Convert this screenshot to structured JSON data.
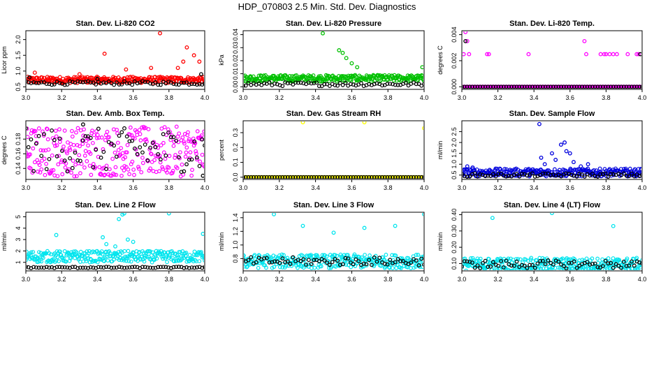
{
  "page_title": "HDP_070803  2.5 Min. Std. Dev. Diagnostics",
  "colors": {
    "black": "#000000"
  },
  "chart_data": [
    {
      "type": "scatter",
      "title": "Stan. Dev. Li-820 CO2",
      "ylabel": "Licor ppm",
      "color": "#ff0000",
      "xlim": [
        3.0,
        4.0
      ],
      "ylim": [
        0.42,
        2.28
      ],
      "xticks": [
        "3.0",
        "3.2",
        "3.4",
        "3.6",
        "3.8",
        "4.0"
      ],
      "xtick_values": [
        3.0,
        3.2,
        3.4,
        3.6,
        3.8,
        4.0
      ],
      "yticks": [
        "0.5",
        "1.0",
        "1.5",
        "2.0"
      ],
      "ytick_values": [
        0.5,
        1.0,
        1.5,
        2.0
      ],
      "series": [
        {
          "name": "colored",
          "base": 0.72,
          "spread": 0.1,
          "x": [
            3.05,
            3.3,
            3.44,
            3.56,
            3.7,
            3.75,
            3.85,
            3.88,
            3.9,
            3.94,
            3.97
          ],
          "y": [
            0.95,
            0.9,
            1.55,
            1.05,
            1.1,
            2.2,
            1.1,
            1.3,
            1.75,
            1.5,
            1.3
          ]
        },
        {
          "name": "black",
          "base": 0.62,
          "spread": 0.06,
          "x": [
            3.02,
            3.4,
            3.98,
            4.0
          ],
          "y": [
            0.8,
            0.75,
            0.9,
            0.6
          ]
        }
      ]
    },
    {
      "type": "scatter",
      "title": "Stan. Dev. Li-820 Pressure",
      "ylabel": "kPa",
      "color": "#00c000",
      "xlim": [
        3.0,
        4.0
      ],
      "ylim": [
        -0.002,
        0.043
      ],
      "xticks": [
        "3.0",
        "3.2",
        "3.4",
        "3.6",
        "3.8",
        "4.0"
      ],
      "xtick_values": [
        3.0,
        3.2,
        3.4,
        3.6,
        3.8,
        4.0
      ],
      "yticks": [
        "0.00",
        "0.01",
        "0.02",
        "0.03",
        "0.04"
      ],
      "ytick_values": [
        0.0,
        0.01,
        0.02,
        0.03,
        0.04
      ],
      "series": [
        {
          "name": "colored",
          "base": 0.0065,
          "spread": 0.0025,
          "x": [
            3.44,
            3.53,
            3.55,
            3.57,
            3.6,
            3.63,
            3.99
          ],
          "y": [
            0.041,
            0.028,
            0.026,
            0.022,
            0.018,
            0.015,
            0.015
          ]
        },
        {
          "name": "black",
          "base": 0.002,
          "spread": 0.0015,
          "x": [],
          "y": []
        }
      ]
    },
    {
      "type": "scatter",
      "title": "Stan. Dev. Li-820 Temp.",
      "ylabel": "degrees C",
      "color": "#ff00ff",
      "xlim": [
        3.0,
        4.0
      ],
      "ylim": [
        -0.0002,
        0.0043
      ],
      "xticks": [
        "3.0",
        "3.2",
        "3.4",
        "3.6",
        "3.8",
        "4.0"
      ],
      "xtick_values": [
        3.0,
        3.2,
        3.4,
        3.6,
        3.8,
        4.0
      ],
      "yticks": [
        "0.000",
        "0.002",
        "0.004"
      ],
      "ytick_values": [
        0.0,
        0.002,
        0.004
      ],
      "series": [
        {
          "name": "colored",
          "base": 0.0,
          "spread": 0.0,
          "x": [
            3.01,
            3.02,
            3.03,
            3.04,
            3.14,
            3.15,
            3.37,
            3.68,
            3.69,
            3.77,
            3.79,
            3.8,
            3.82,
            3.84,
            3.86,
            3.92,
            3.97,
            3.98
          ],
          "y": [
            0.0025,
            0.0042,
            0.0035,
            0.0025,
            0.0025,
            0.0025,
            0.0025,
            0.0035,
            0.0025,
            0.0025,
            0.0025,
            0.0025,
            0.0025,
            0.0025,
            0.0025,
            0.0025,
            0.0025,
            0.0025
          ]
        },
        {
          "name": "black",
          "base": 0.0,
          "spread": 0.0,
          "x": [
            3.02,
            3.99
          ],
          "y": [
            0.0035,
            0.0025
          ]
        }
      ]
    },
    {
      "type": "scatter",
      "title": "Stan. Dev. Amb. Box Temp.",
      "ylabel": "degrees C",
      "color": "#ff00ff",
      "xlim": [
        3.0,
        4.0
      ],
      "ylim": [
        0.125,
        0.205
      ],
      "xticks": [
        "3.0",
        "3.2",
        "3.4",
        "3.6",
        "3.8",
        "4.0"
      ],
      "xtick_values": [
        3.0,
        3.2,
        3.4,
        3.6,
        3.8,
        4.0
      ],
      "yticks": [
        "0.14",
        "0.16",
        "0.18"
      ],
      "ytick_values": [
        0.14,
        0.16,
        0.18
      ],
      "series": [
        {
          "name": "colored",
          "base": 0.163,
          "spread": 0.034,
          "x": [],
          "y": []
        },
        {
          "name": "black",
          "base": 0.165,
          "spread": 0.03,
          "x": [
            3.32,
            3.99
          ],
          "y": [
            0.2,
            0.13
          ]
        }
      ]
    },
    {
      "type": "scatter",
      "title": "Stan. Dev. Gas Stream RH",
      "ylabel": "percent",
      "color": "#ffff00",
      "xlim": [
        3.0,
        4.0
      ],
      "ylim": [
        -0.015,
        0.38
      ],
      "xticks": [
        "3.0",
        "3.2",
        "3.4",
        "3.6",
        "3.8",
        "4.0"
      ],
      "xtick_values": [
        3.0,
        3.2,
        3.4,
        3.6,
        3.8,
        4.0
      ],
      "yticks": [
        "0.0",
        "0.1",
        "0.2",
        "0.3"
      ],
      "ytick_values": [
        0.0,
        0.1,
        0.2,
        0.3
      ],
      "series": [
        {
          "name": "colored",
          "base": 0.0,
          "spread": 0.0,
          "x": [
            3.33,
            3.67,
            4.0
          ],
          "y": [
            0.37,
            0.37,
            0.33
          ]
        },
        {
          "name": "black",
          "base": 0.0,
          "spread": 0.0,
          "x": [],
          "y": []
        }
      ]
    },
    {
      "type": "scatter",
      "title": "Stan. Dev. Sample Flow",
      "ylabel": "ml/min",
      "color": "#0000dd",
      "xlim": [
        3.0,
        4.0
      ],
      "ylim": [
        0.3,
        3.0
      ],
      "xticks": [
        "3.0",
        "3.2",
        "3.4",
        "3.6",
        "3.8",
        "4.0"
      ],
      "xtick_values": [
        3.0,
        3.2,
        3.4,
        3.6,
        3.8,
        4.0
      ],
      "yticks": [
        "0.5",
        "1.0",
        "1.5",
        "2.0",
        "2.5"
      ],
      "ytick_values": [
        0.5,
        1.0,
        1.5,
        2.0,
        2.5
      ],
      "series": [
        {
          "name": "colored",
          "base": 0.62,
          "spread": 0.18,
          "x": [
            3.43,
            3.44,
            3.46,
            3.5,
            3.52,
            3.55,
            3.57,
            3.58,
            3.6,
            3.62,
            3.66,
            3.7,
            3.03,
            3.06
          ],
          "y": [
            2.85,
            1.3,
            1.0,
            1.5,
            1.2,
            1.9,
            2.0,
            1.6,
            1.5,
            1.1,
            0.9,
            1.0,
            0.9,
            0.85
          ]
        },
        {
          "name": "black",
          "base": 0.5,
          "spread": 0.08,
          "x": [],
          "y": []
        }
      ]
    },
    {
      "type": "scatter",
      "title": "Stan. Dev. Line 2 Flow",
      "ylabel": "ml/min",
      "color": "#00e5ee",
      "xlim": [
        3.0,
        4.0
      ],
      "ylim": [
        0.25,
        5.4
      ],
      "xticks": [
        "3.0",
        "3.2",
        "3.4",
        "3.6",
        "3.8",
        "4.0"
      ],
      "xtick_values": [
        3.0,
        3.2,
        3.4,
        3.6,
        3.8,
        4.0
      ],
      "yticks": [
        "1",
        "2",
        "3",
        "4",
        "5"
      ],
      "ytick_values": [
        1,
        2,
        3,
        4,
        5
      ],
      "series": [
        {
          "name": "colored",
          "base": 1.5,
          "spread": 0.5,
          "x": [
            3.17,
            3.43,
            3.52,
            3.54,
            3.55,
            3.8,
            3.99,
            3.45,
            3.5,
            3.57,
            3.6
          ],
          "y": [
            3.4,
            3.2,
            4.8,
            5.2,
            5.3,
            5.3,
            3.5,
            2.6,
            2.4,
            3.0,
            2.8
          ]
        },
        {
          "name": "black",
          "base": 0.55,
          "spread": 0.06,
          "x": [],
          "y": []
        }
      ]
    },
    {
      "type": "scatter",
      "title": "Stan. Dev. Line 3 Flow",
      "ylabel": "ml/min",
      "color": "#00e5ee",
      "xlim": [
        3.0,
        4.0
      ],
      "ylim": [
        0.62,
        1.48
      ],
      "xticks": [
        "3.0",
        "3.2",
        "3.4",
        "3.6",
        "3.8",
        "4.0"
      ],
      "xtick_values": [
        3.0,
        3.2,
        3.4,
        3.6,
        3.8,
        4.0
      ],
      "yticks": [
        "0.8",
        "1.0",
        "1.2",
        "1.4"
      ],
      "ytick_values": [
        0.8,
        1.0,
        1.2,
        1.4
      ],
      "series": [
        {
          "name": "colored",
          "base": 0.76,
          "spread": 0.1,
          "x": [
            3.17,
            3.33,
            3.5,
            3.67,
            3.84,
            4.0
          ],
          "y": [
            1.45,
            1.28,
            1.18,
            1.25,
            1.28,
            1.45
          ]
        },
        {
          "name": "black",
          "base": 0.76,
          "spread": 0.06,
          "x": [],
          "y": []
        }
      ]
    },
    {
      "type": "scatter",
      "title": "Stan. Dev. Line 4 (LT) Flow",
      "ylabel": "ml/min",
      "color": "#00e5ee",
      "xlim": [
        3.0,
        4.0
      ],
      "ylim": [
        0.055,
        0.415
      ],
      "xticks": [
        "3.0",
        "3.2",
        "3.4",
        "3.6",
        "3.8",
        "4.0"
      ],
      "xtick_values": [
        3.0,
        3.2,
        3.4,
        3.6,
        3.8,
        4.0
      ],
      "yticks": [
        "0.10",
        "0.20",
        "0.30",
        "0.40"
      ],
      "ytick_values": [
        0.1,
        0.2,
        0.3,
        0.4
      ],
      "series": [
        {
          "name": "colored",
          "base": 0.095,
          "spread": 0.04,
          "x": [
            3.17,
            3.5,
            3.84
          ],
          "y": [
            0.38,
            0.41,
            0.33
          ]
        },
        {
          "name": "black",
          "base": 0.095,
          "spread": 0.025,
          "x": [],
          "y": []
        }
      ]
    }
  ]
}
